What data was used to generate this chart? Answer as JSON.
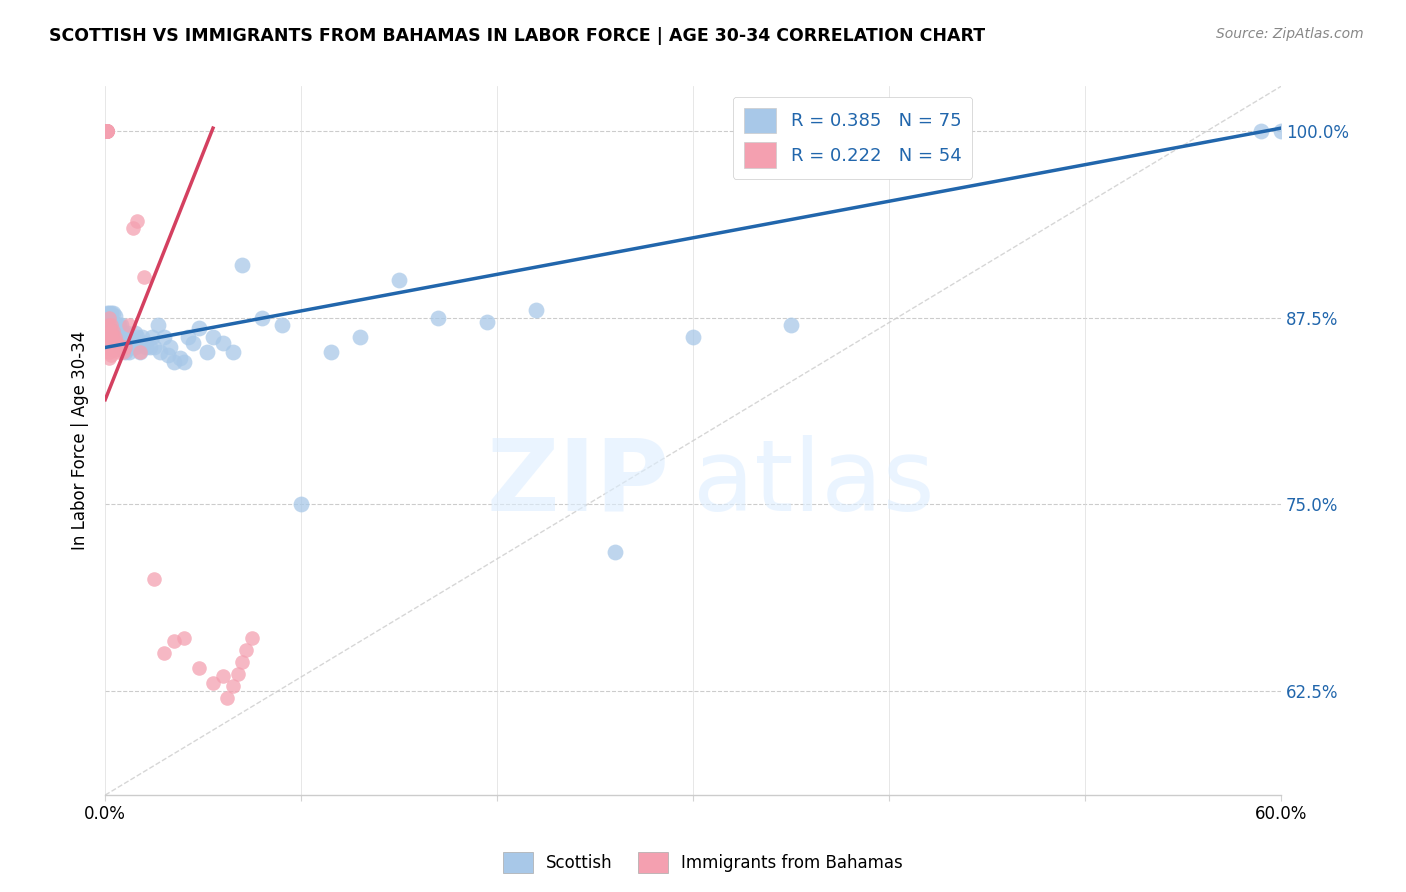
{
  "title": "SCOTTISH VS IMMIGRANTS FROM BAHAMAS IN LABOR FORCE | AGE 30-34 CORRELATION CHART",
  "source": "Source: ZipAtlas.com",
  "ylabel": "In Labor Force | Age 30-34",
  "xlim": [
    0.0,
    0.6
  ],
  "ylim": [
    0.555,
    1.03
  ],
  "yticks": [
    0.625,
    0.75,
    0.875,
    1.0
  ],
  "yticklabels": [
    "62.5%",
    "75.0%",
    "87.5%",
    "100.0%"
  ],
  "blue_color": "#a8c8e8",
  "pink_color": "#f4a0b0",
  "blue_line_color": "#2166ac",
  "pink_line_color": "#d44060",
  "legend_blue_color": "#a8c8e8",
  "legend_pink_color": "#f4a0b0",
  "legend_text_color": "#2166ac",
  "R_blue": 0.385,
  "N_blue": 75,
  "R_pink": 0.222,
  "N_pink": 54,
  "scottish_x": [
    0.001,
    0.001,
    0.002,
    0.002,
    0.003,
    0.003,
    0.003,
    0.004,
    0.004,
    0.004,
    0.004,
    0.005,
    0.005,
    0.005,
    0.005,
    0.006,
    0.006,
    0.006,
    0.007,
    0.007,
    0.007,
    0.008,
    0.008,
    0.008,
    0.009,
    0.009,
    0.01,
    0.01,
    0.011,
    0.011,
    0.012,
    0.012,
    0.013,
    0.014,
    0.015,
    0.015,
    0.016,
    0.017,
    0.018,
    0.019,
    0.02,
    0.021,
    0.023,
    0.024,
    0.025,
    0.027,
    0.028,
    0.03,
    0.032,
    0.033,
    0.035,
    0.038,
    0.04,
    0.042,
    0.045,
    0.048,
    0.052,
    0.055,
    0.06,
    0.065,
    0.07,
    0.08,
    0.09,
    0.1,
    0.115,
    0.13,
    0.15,
    0.17,
    0.195,
    0.22,
    0.26,
    0.3,
    0.35,
    0.59,
    0.6
  ],
  "scottish_y": [
    0.87,
    0.878,
    0.865,
    0.878,
    0.868,
    0.872,
    0.878,
    0.862,
    0.868,
    0.872,
    0.878,
    0.86,
    0.864,
    0.87,
    0.876,
    0.858,
    0.863,
    0.87,
    0.858,
    0.863,
    0.87,
    0.855,
    0.862,
    0.87,
    0.856,
    0.865,
    0.852,
    0.86,
    0.854,
    0.865,
    0.852,
    0.86,
    0.858,
    0.86,
    0.855,
    0.865,
    0.862,
    0.858,
    0.852,
    0.862,
    0.858,
    0.855,
    0.855,
    0.862,
    0.855,
    0.87,
    0.852,
    0.862,
    0.85,
    0.855,
    0.845,
    0.848,
    0.845,
    0.862,
    0.858,
    0.868,
    0.852,
    0.862,
    0.858,
    0.852,
    0.91,
    0.875,
    0.87,
    0.75,
    0.852,
    0.862,
    0.9,
    0.875,
    0.872,
    0.88,
    0.718,
    0.862,
    0.87,
    1.0,
    1.0
  ],
  "bahamas_x": [
    0.001,
    0.001,
    0.001,
    0.001,
    0.001,
    0.001,
    0.001,
    0.001,
    0.001,
    0.002,
    0.002,
    0.002,
    0.002,
    0.002,
    0.002,
    0.002,
    0.003,
    0.003,
    0.003,
    0.003,
    0.003,
    0.003,
    0.004,
    0.004,
    0.004,
    0.004,
    0.005,
    0.005,
    0.005,
    0.006,
    0.006,
    0.007,
    0.007,
    0.008,
    0.009,
    0.01,
    0.012,
    0.014,
    0.016,
    0.018,
    0.02,
    0.025,
    0.03,
    0.035,
    0.04,
    0.048,
    0.055,
    0.06,
    0.062,
    0.065,
    0.068,
    0.07,
    0.072,
    0.075
  ],
  "bahamas_y": [
    1.0,
    1.0,
    1.0,
    1.0,
    1.0,
    1.0,
    1.0,
    1.0,
    1.0,
    0.875,
    0.87,
    0.865,
    0.86,
    0.856,
    0.852,
    0.848,
    0.87,
    0.866,
    0.862,
    0.858,
    0.854,
    0.85,
    0.866,
    0.862,
    0.858,
    0.854,
    0.862,
    0.858,
    0.854,
    0.858,
    0.854,
    0.856,
    0.852,
    0.854,
    0.852,
    0.855,
    0.87,
    0.935,
    0.94,
    0.852,
    0.902,
    0.7,
    0.65,
    0.658,
    0.66,
    0.64,
    0.63,
    0.635,
    0.62,
    0.628,
    0.636,
    0.644,
    0.652,
    0.66
  ]
}
